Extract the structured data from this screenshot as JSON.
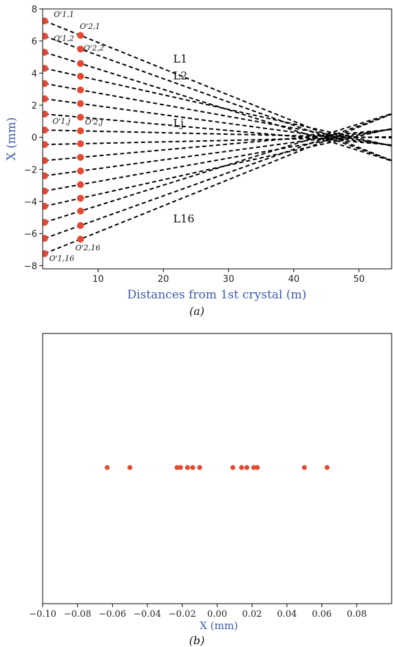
{
  "chart_data": [
    {
      "panel": "(a)",
      "type": "line",
      "xlabel": "Distances from 1st crystal (m)",
      "ylabel": "X (mm)",
      "xlim": [
        1.5,
        55
      ],
      "ylim": [
        -8.2,
        8.0
      ],
      "xticks": [
        10,
        20,
        30,
        40,
        50
      ],
      "yticks": [
        -8,
        -6,
        -4,
        -2,
        0,
        2,
        4,
        6,
        8
      ],
      "marker_color": "#e24a33",
      "line_color": "#000000",
      "crystal1_x": 1.8,
      "crystal2_x": 7.3,
      "focus_x": 46,
      "line_end_x": 55,
      "points_crystal1": [
        7.25,
        6.3,
        5.3,
        4.3,
        3.35,
        2.4,
        1.45,
        0.45,
        -0.45,
        -1.45,
        -2.4,
        -3.35,
        -4.3,
        -5.3,
        -6.3,
        -7.25
      ],
      "points_crystal2": [
        6.35,
        5.5,
        4.6,
        3.8,
        2.95,
        2.1,
        1.25,
        0.4,
        -0.4,
        -1.25,
        -2.1,
        -2.95,
        -3.8,
        -4.6,
        -5.5,
        -6.35
      ],
      "line_labels": [
        {
          "text": "L1",
          "x": 21.5,
          "y": 4.65
        },
        {
          "text": "L2",
          "x": 21.5,
          "y": 3.6
        },
        {
          "text": "Lj",
          "x": 21.5,
          "y": 0.65
        },
        {
          "text": "L16",
          "x": 21.5,
          "y": -5.3
        }
      ],
      "annotations": [
        {
          "text": "O'1,1",
          "x": 3.2,
          "y": 7.5
        },
        {
          "text": "O'2,1",
          "x": 7.2,
          "y": 6.75
        },
        {
          "text": "O'1,2",
          "x": 3.2,
          "y": 6.0
        },
        {
          "text": "O'2,2",
          "x": 7.8,
          "y": 5.4
        },
        {
          "text": "O'1,j",
          "x": 3.0,
          "y": 0.85
        },
        {
          "text": "O'2,j",
          "x": 8.0,
          "y": 0.8
        },
        {
          "text": "O'1,16",
          "x": 2.5,
          "y": -7.7
        },
        {
          "text": "O'2,16",
          "x": 6.5,
          "y": -7.05
        }
      ]
    },
    {
      "panel": "(b)",
      "type": "scatter",
      "xlabel": "X (mm)",
      "ylabel": "",
      "xlim": [
        -0.1,
        0.1
      ],
      "xticks": [
        -0.1,
        -0.08,
        -0.06,
        -0.04,
        -0.02,
        0.0,
        0.02,
        0.04,
        0.06,
        0.08
      ],
      "xtick_labels": [
        "−0.10",
        "−0.08",
        "−0.06",
        "−0.04",
        "−0.02",
        "0.00",
        "0.02",
        "0.04",
        "0.06",
        "0.08"
      ],
      "marker_color": "#e24a33",
      "x": [
        -0.063,
        -0.05,
        -0.023,
        -0.021,
        -0.017,
        -0.014,
        -0.01,
        0.009,
        0.014,
        0.017,
        0.021,
        0.023,
        0.05,
        0.063
      ]
    }
  ]
}
